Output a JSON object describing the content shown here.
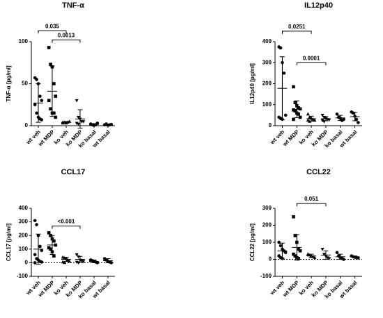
{
  "chart_data": [
    {
      "type": "dot",
      "title": "TNF-α",
      "ylabel": "TNF-α [pg/ml]",
      "categories": [
        "wt veh",
        "wt MDP",
        "ko veh",
        "ko MDP",
        "ko basal",
        "wt basal"
      ],
      "markers": [
        "circle",
        "square",
        "triangle",
        "triangle-down",
        "circle",
        "circle"
      ],
      "color": "#000000",
      "points": [
        [
          57,
          55,
          50,
          35,
          30,
          25,
          15,
          10,
          8,
          7
        ],
        [
          93,
          73,
          70,
          50,
          35,
          30,
          20,
          15,
          15,
          10
        ],
        [
          4,
          4,
          3,
          4,
          5,
          3
        ],
        [
          30,
          10,
          8,
          5,
          5,
          3,
          2
        ],
        [
          2,
          1,
          0.5,
          1,
          3
        ],
        [
          1,
          2,
          0.5,
          1,
          1.5
        ]
      ],
      "means": [
        27,
        41,
        4,
        8,
        1.5,
        1
      ],
      "sds": [
        23,
        30,
        1,
        11,
        1,
        0.5
      ],
      "ylim": [
        0,
        100
      ],
      "yticks": [
        0,
        50,
        100
      ],
      "zero_line": false,
      "brackets": [
        {
          "label": "0.035",
          "from": "wt veh",
          "to": "ko veh",
          "y": 113
        },
        {
          "label": "0.0013",
          "from": "wt MDP",
          "to": "ko MDP",
          "y": 102
        }
      ]
    },
    {
      "type": "dot",
      "title": "IL12p40",
      "ylabel": "IL12p40 [pg/ml]",
      "categories": [
        "wt veh",
        "wt MDP",
        "ko veh",
        "ko MDP",
        "ko basal",
        "wt basal"
      ],
      "markers": [
        "circle",
        "square",
        "triangle",
        "triangle-down",
        "circle",
        "circle"
      ],
      "color": "#000000",
      "points": [
        [
          375,
          370,
          300,
          250,
          50,
          40,
          35,
          30
        ],
        [
          185,
          110,
          95,
          85,
          80,
          75,
          70,
          60,
          55,
          40,
          30
        ],
        [
          55,
          40,
          35,
          30,
          25,
          25,
          20
        ],
        [
          50,
          40,
          35,
          30,
          28,
          25,
          20
        ],
        [
          55,
          40,
          35,
          25,
          30
        ],
        [
          65,
          60,
          45,
          30,
          15
        ]
      ],
      "means": [
        178,
        78,
        33,
        33,
        37,
        43
      ],
      "sds": [
        150,
        40,
        12,
        10,
        12,
        20
      ],
      "ylim": [
        0,
        400
      ],
      "yticks": [
        0,
        100,
        200,
        300,
        400
      ],
      "zero_line": false,
      "brackets": [
        {
          "label": "0.0251",
          "from": "wt veh",
          "to": "ko veh",
          "y": 450
        },
        {
          "label": "0.0001",
          "from": "wt MDP",
          "to": "ko MDP",
          "y": 300
        }
      ]
    },
    {
      "type": "dot",
      "title": "CCL17",
      "ylabel": "CCL17 [pg/ml]",
      "categories": [
        "wt veh",
        "wt MDP",
        "ko veh",
        "ko MDP",
        "ko basal",
        "wt basal"
      ],
      "markers": [
        "circle",
        "square",
        "triangle",
        "triangle-down",
        "circle",
        "circle"
      ],
      "color": "#000000",
      "points": [
        [
          310,
          280,
          200,
          120,
          90,
          60,
          30,
          20,
          10,
          5,
          0
        ],
        [
          220,
          200,
          175,
          160,
          130,
          110,
          100,
          80,
          50
        ],
        [
          40,
          35,
          30,
          20,
          10,
          5,
          0
        ],
        [
          60,
          45,
          20,
          15,
          10,
          5,
          0
        ],
        [
          20,
          15,
          10,
          5,
          0
        ],
        [
          30,
          20,
          10,
          5,
          0
        ]
      ],
      "means": [
        100,
        130,
        25,
        25,
        10,
        15
      ],
      "sds": [
        110,
        70,
        15,
        22,
        10,
        15
      ],
      "ylim": [
        -100,
        400
      ],
      "yticks": [
        -100,
        0,
        100,
        200,
        300,
        400
      ],
      "zero_line": true,
      "brackets": [
        {
          "label": "<0.001",
          "from": "wt MDP",
          "to": "ko MDP",
          "y": 270
        }
      ]
    },
    {
      "type": "dot",
      "title": "CCL22",
      "ylabel": "CCL22 [pg/ml]",
      "categories": [
        "wt veh",
        "wt MDP",
        "ko veh",
        "ko MDP",
        "ko basal",
        "wt basal"
      ],
      "markers": [
        "circle",
        "square",
        "triangle",
        "triangle-down",
        "circle",
        "circle"
      ],
      "color": "#000000",
      "points": [
        [
          100,
          80,
          60,
          50,
          40,
          20,
          10,
          5
        ],
        [
          250,
          140,
          100,
          60,
          50,
          30,
          20,
          10,
          5
        ],
        [
          30,
          25,
          20,
          15,
          10
        ],
        [
          60,
          30,
          20,
          10,
          5
        ],
        [
          40,
          20,
          10,
          5,
          0
        ],
        [
          20,
          15,
          12,
          10,
          8
        ]
      ],
      "means": [
        50,
        70,
        20,
        25,
        15,
        15
      ],
      "sds": [
        45,
        75,
        10,
        25,
        15,
        5
      ],
      "ylim": [
        -100,
        300
      ],
      "yticks": [
        -100,
        0,
        100,
        200,
        300
      ],
      "zero_line": true,
      "brackets": [
        {
          "label": "0.051",
          "from": "wt MDP",
          "to": "ko MDP",
          "y": 328
        }
      ]
    }
  ]
}
